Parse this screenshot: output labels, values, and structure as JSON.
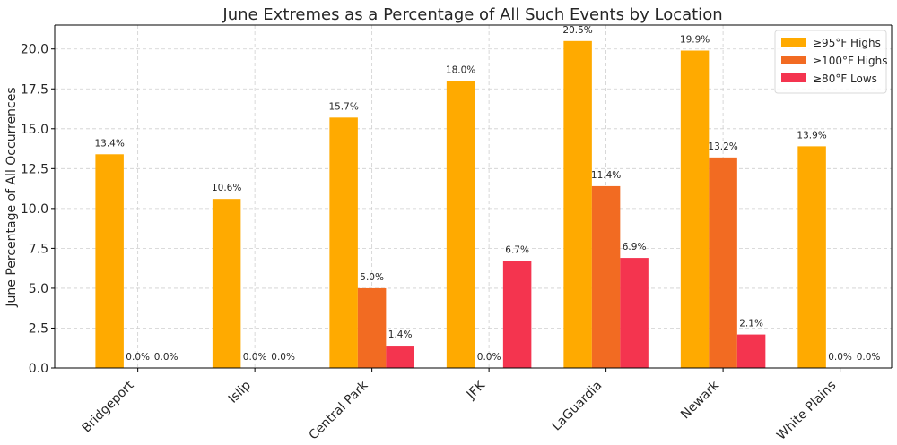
{
  "chart_data": {
    "type": "bar",
    "title": "June Extremes as a Percentage of All Such Events by Location",
    "xlabel": "",
    "ylabel": "June Percentage of All Occurrences",
    "categories": [
      "Bridgeport",
      "Islip",
      "Central Park",
      "JFK",
      "LaGuardia",
      "Newark",
      "White Plains"
    ],
    "series": [
      {
        "name": "≥95°F Highs",
        "color": "#FFAA00",
        "values": [
          13.4,
          10.6,
          15.7,
          18.0,
          20.5,
          19.9,
          13.9
        ],
        "labels": [
          "13.4%",
          "10.6%",
          "15.7%",
          "18.0%",
          "20.5%",
          "19.9%",
          "13.9%"
        ]
      },
      {
        "name": "≥100°F Highs",
        "color": "#F26B22",
        "values": [
          0.0,
          0.0,
          5.0,
          0.0,
          11.4,
          13.2,
          0.0
        ],
        "labels": [
          "0.0%",
          "0.0%",
          "5.0%",
          "0.0%",
          "11.4%",
          "13.2%",
          "0.0%"
        ]
      },
      {
        "name": "≥80°F Lows",
        "color": "#F4344F",
        "values": [
          0.0,
          0.0,
          1.4,
          6.7,
          6.9,
          2.1,
          0.0
        ],
        "labels": [
          "0.0%",
          "0.0%",
          "1.4%",
          "6.7%",
          "6.9%",
          "2.1%",
          "0.0%"
        ]
      }
    ],
    "ylim": [
      0,
      21.5
    ],
    "yticks": [
      0.0,
      2.5,
      5.0,
      7.5,
      10.0,
      12.5,
      15.0,
      17.5,
      20.0
    ],
    "ytick_labels": [
      "0.0",
      "2.5",
      "5.0",
      "7.5",
      "10.0",
      "12.5",
      "15.0",
      "17.5",
      "20.0"
    ],
    "grid": true,
    "legend_position": "top-right"
  }
}
